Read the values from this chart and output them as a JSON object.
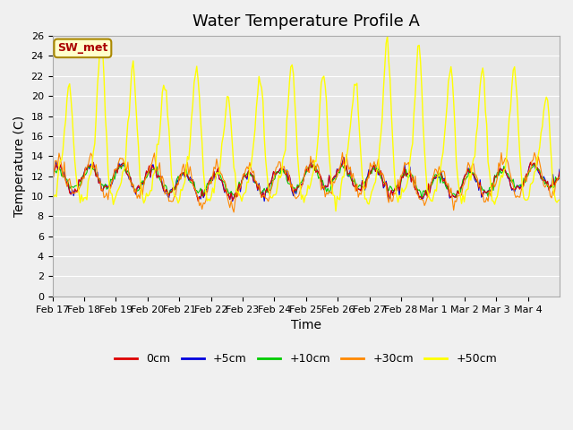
{
  "title": "Water Temperature Profile A",
  "xlabel": "Time",
  "ylabel": "Temperature (C)",
  "ylim": [
    0,
    26
  ],
  "yticks": [
    0,
    2,
    4,
    6,
    8,
    10,
    12,
    14,
    16,
    18,
    20,
    22,
    24,
    26
  ],
  "xtick_labels": [
    "Feb 17",
    "Feb 18",
    "Feb 19",
    "Feb 20",
    "Feb 21",
    "Feb 22",
    "Feb 23",
    "Feb 24",
    "Feb 25",
    "Feb 26",
    "Feb 27",
    "Feb 28",
    "Mar 1",
    "Mar 2",
    "Mar 3",
    "Mar 4"
  ],
  "legend_labels": [
    "0cm",
    "+5cm",
    "+10cm",
    "+30cm",
    "+50cm"
  ],
  "legend_colors": [
    "#dd0000",
    "#0000dd",
    "#00cc00",
    "#ff8800",
    "#ffff00"
  ],
  "annotation_text": "SW_met",
  "annotation_color": "#aa0000",
  "annotation_bg": "#ffffcc",
  "annotation_border": "#aa8800",
  "fig_bg": "#f0f0f0",
  "plot_bg": "#e8e8e8",
  "grid_color": "#ffffff",
  "title_fontsize": 13,
  "axis_fontsize": 10,
  "tick_fontsize": 8
}
